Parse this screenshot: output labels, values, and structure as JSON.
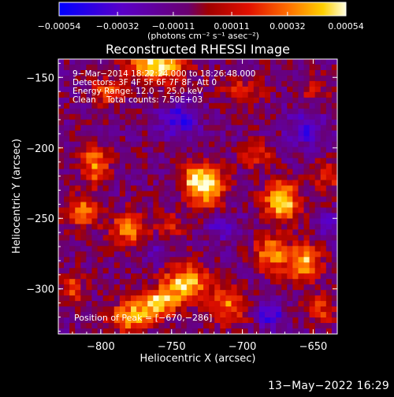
{
  "chart_data": {
    "type": "heatmap",
    "title": "Reconstructed RHESSI Image",
    "xlabel": "Heliocentric X (arcsec)",
    "ylabel": "Heliocentric Y (arcsec)",
    "xlim": [
      -830,
      -633
    ],
    "ylim": [
      -332,
      -137
    ],
    "x_ticks": [
      -800,
      -750,
      -700,
      -650
    ],
    "x_tick_labels": [
      "−800",
      "−750",
      "−700",
      "−650"
    ],
    "y_ticks": [
      -150,
      -200,
      -250,
      -300
    ],
    "y_tick_labels": [
      "−150",
      "−200",
      "−250",
      "−300"
    ],
    "grid": false,
    "colorbar": {
      "range": [
        -0.00054,
        0.00054
      ],
      "ticks": [
        -0.00054,
        -0.00032,
        -0.00011,
        0.00011,
        0.00032,
        0.00054
      ],
      "tick_labels": [
        "−0.00054",
        "−0.00032",
        "−0.00011",
        "0.00011",
        "0.00032",
        "0.00054"
      ],
      "units_label": "(photons cm⁻² s⁻¹ asec⁻²)"
    },
    "annotations": [
      "9−Mar−2014 18:22:24.000 to 18:26:48.000",
      "Detectors: 3F 4F 5F 6F 7F 8F, Att 0",
      "Energy Range: 12.0 − 25.0 keV",
      "Clean    Total counts: 7.50E+03"
    ],
    "peak_label": "Position of Peak = [−670,−286]",
    "grid_nx": 50,
    "grid_ny": 50,
    "blobs": [
      {
        "x": -760,
        "y": -142,
        "sx": 14,
        "sy": 8,
        "amp": 1.1
      },
      {
        "x": -725,
        "y": -228,
        "sx": 9,
        "sy": 11,
        "amp": 1.05
      },
      {
        "x": -735,
        "y": -222,
        "sx": 6,
        "sy": 6,
        "amp": 0.6
      },
      {
        "x": -672,
        "y": -238,
        "sx": 9,
        "sy": 10,
        "amp": 1.05
      },
      {
        "x": -680,
        "y": -275,
        "sx": 8,
        "sy": 9,
        "amp": 0.85
      },
      {
        "x": -656,
        "y": -282,
        "sx": 8,
        "sy": 10,
        "amp": 0.95
      },
      {
        "x": -740,
        "y": -296,
        "sx": 11,
        "sy": 9,
        "amp": 1.05
      },
      {
        "x": -760,
        "y": -310,
        "sx": 10,
        "sy": 7,
        "amp": 0.95
      },
      {
        "x": -780,
        "y": -320,
        "sx": 10,
        "sy": 7,
        "amp": 0.9
      },
      {
        "x": -804,
        "y": -212,
        "sx": 7,
        "sy": 10,
        "amp": 0.8
      },
      {
        "x": -812,
        "y": -245,
        "sx": 8,
        "sy": 8,
        "amp": 0.75
      },
      {
        "x": -780,
        "y": -258,
        "sx": 9,
        "sy": 9,
        "amp": 0.75
      },
      {
        "x": -710,
        "y": -312,
        "sx": 9,
        "sy": 9,
        "amp": 0.7
      },
      {
        "x": -796,
        "y": -160,
        "sx": 8,
        "sy": 7,
        "amp": 0.6
      },
      {
        "x": -700,
        "y": -160,
        "sx": 10,
        "sy": 7,
        "amp": 0.45
      },
      {
        "x": -650,
        "y": -160,
        "sx": 8,
        "sy": 8,
        "amp": 0.35
      },
      {
        "x": -690,
        "y": -205,
        "sx": 7,
        "sy": 7,
        "amp": 0.55
      },
      {
        "x": -750,
        "y": -255,
        "sx": 7,
        "sy": 6,
        "amp": 0.45
      },
      {
        "x": -640,
        "y": -220,
        "sx": 6,
        "sy": 8,
        "amp": 0.55
      },
      {
        "x": -645,
        "y": -315,
        "sx": 7,
        "sy": 7,
        "amp": 0.55
      },
      {
        "x": -820,
        "y": -300,
        "sx": 6,
        "sy": 8,
        "amp": 0.55
      }
    ],
    "dips": [
      {
        "x": -745,
        "y": -180,
        "sx": 10,
        "sy": 8,
        "amp": 0.55
      },
      {
        "x": -655,
        "y": -185,
        "sx": 9,
        "sy": 10,
        "amp": 0.5
      },
      {
        "x": -680,
        "y": -318,
        "sx": 6,
        "sy": 7,
        "amp": 0.6
      },
      {
        "x": -715,
        "y": -255,
        "sx": 8,
        "sy": 8,
        "amp": 0.4
      },
      {
        "x": -760,
        "y": -275,
        "sx": 6,
        "sy": 6,
        "amp": 0.35
      },
      {
        "x": -640,
        "y": -255,
        "sx": 6,
        "sy": 6,
        "amp": 0.3
      }
    ]
  },
  "footer": {
    "timestamp": "13−May−2022 16:29"
  },
  "colors": {
    "background": "#000000",
    "text": "#ffffff"
  }
}
